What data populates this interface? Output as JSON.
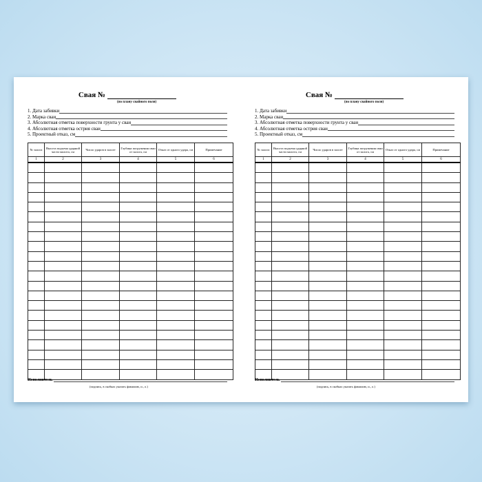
{
  "page": {
    "title": "Свая №",
    "subtitle": "(по плану свайного поля)",
    "fields": [
      "1. Дата забивки",
      "2. Марка сваи",
      "3. Абсолютная отметка поверхности грунта у сваи",
      "4. Абсолютная отметка острия сваи",
      "5. Проектный отказ, см"
    ],
    "columns": [
      "№ залога",
      "Высота подъема ударной части молота, см",
      "Число ударов в залоге",
      "Глубина погружения сваи от залога, см",
      "Отказ от одного удара, см",
      "Примечание"
    ],
    "column_numbers": [
      "1",
      "2",
      "3",
      "4",
      "5",
      "6"
    ],
    "footer_label": "Исполнитель",
    "footer_note": "(подпись, в скобках указать фамилию, и., о.)"
  },
  "colors": {
    "background": "#bcdcf0",
    "sheet": "#ffffff"
  }
}
